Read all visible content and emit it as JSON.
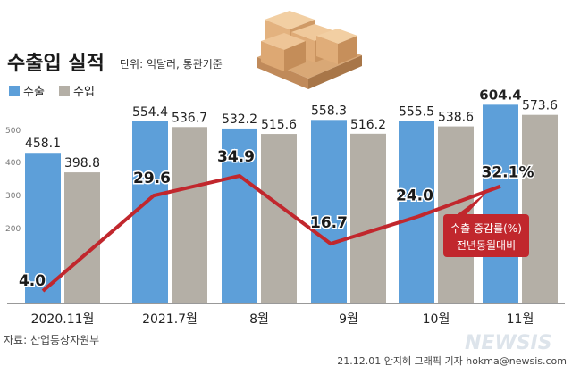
{
  "chart_data": {
    "type": "bar",
    "title": "수출입 실적",
    "subtitle": "단위: 억달러, 통관기준",
    "categories": [
      "2020.11월",
      "2021.7월",
      "8월",
      "9월",
      "10월",
      "11월"
    ],
    "series": [
      {
        "name": "수출",
        "values": [
          458.1,
          554.4,
          532.2,
          558.3,
          555.5,
          604.4
        ],
        "color": "#5d9fd9"
      },
      {
        "name": "수입",
        "values": [
          398.8,
          536.7,
          515.6,
          516.2,
          538.6,
          573.6
        ],
        "color": "#b4afa6"
      }
    ],
    "line_series": {
      "name": "수출 증감률(%)",
      "values": [
        4.0,
        29.6,
        34.9,
        16.7,
        24.0,
        32.1
      ],
      "labels": [
        "4.0",
        "29.6",
        "34.9",
        "16.7",
        "24.0",
        "32.1%"
      ],
      "color": "#c1272d"
    },
    "y_ticks": [
      "500",
      "400",
      "300",
      "200"
    ],
    "ylim": [
      0,
      610
    ],
    "legend_position": "top-left",
    "annotation": {
      "line1": "수출 증감률(%)",
      "line2": "전년동월대비"
    },
    "source": "자료: 산업통상자원부",
    "credit": "21.12.01 안지혜 그래픽 기자 hokma@newsis.com",
    "watermark": "NEWSIS"
  }
}
